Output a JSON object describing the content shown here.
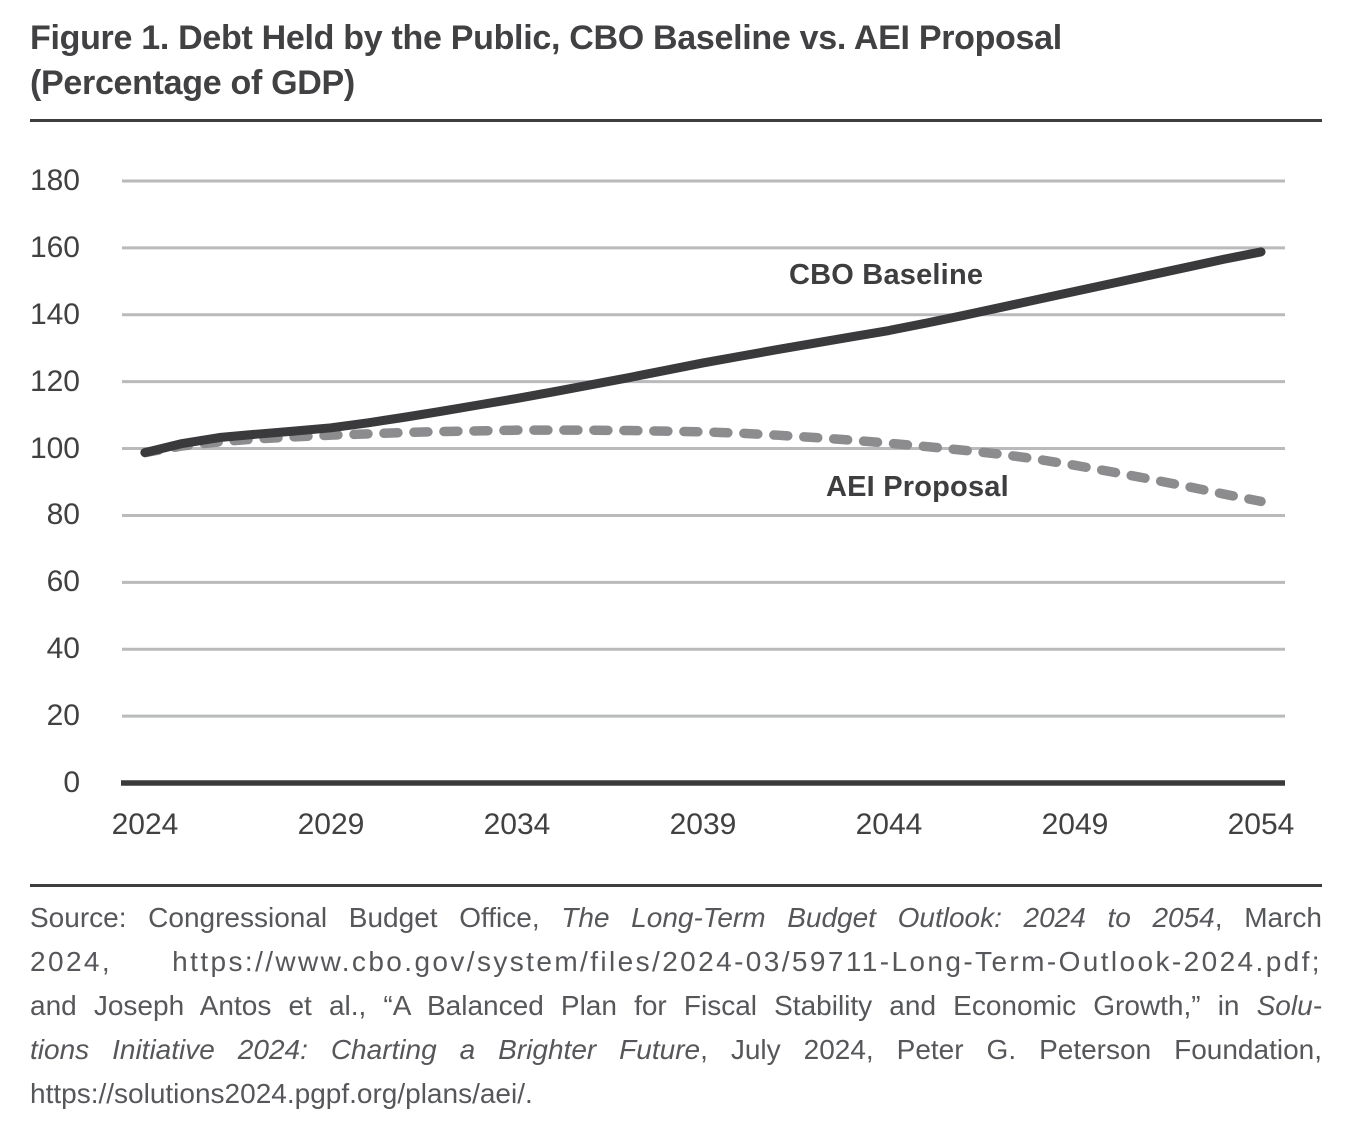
{
  "title": {
    "lines": [
      "Figure 1. Debt Held by the Public, CBO Baseline vs. AEI Proposal",
      "(Percentage of GDP)"
    ]
  },
  "chart_data": {
    "type": "line",
    "title": "Figure 1. Debt Held by the Public, CBO Baseline vs. AEI Proposal (Percentage of GDP)",
    "xlabel": "",
    "ylabel": "Percentage of GDP",
    "ylim": [
      0,
      180
    ],
    "y_ticks": [
      0,
      20,
      40,
      60,
      80,
      100,
      120,
      140,
      160,
      180
    ],
    "x_ticks": [
      2024,
      2029,
      2034,
      2039,
      2044,
      2049,
      2054
    ],
    "grid": "horizontal",
    "legend": "inline-labels",
    "x": [
      2024,
      2025,
      2026,
      2027,
      2028,
      2029,
      2030,
      2031,
      2032,
      2033,
      2034,
      2035,
      2036,
      2037,
      2038,
      2039,
      2040,
      2041,
      2042,
      2043,
      2044,
      2045,
      2046,
      2047,
      2048,
      2049,
      2050,
      2051,
      2052,
      2053,
      2054
    ],
    "series": [
      {
        "name": "CBO Baseline",
        "style": "solid",
        "color": "#3a3a3c",
        "values": [
          98.8,
          101.5,
          103.3,
          104.3,
          105.2,
          106.2,
          107.7,
          109.4,
          111.2,
          113.1,
          115.0,
          117.0,
          119.1,
          121.2,
          123.4,
          125.6,
          127.6,
          129.6,
          131.5,
          133.4,
          135.3,
          137.5,
          139.8,
          142.2,
          144.6,
          147.0,
          149.4,
          151.8,
          154.2,
          156.6,
          158.8
        ]
      },
      {
        "name": "AEI Proposal",
        "style": "dashed",
        "color": "#8c8c8e",
        "values": [
          98.8,
          100.8,
          102.0,
          102.9,
          103.5,
          104.0,
          104.4,
          104.8,
          105.1,
          105.3,
          105.5,
          105.5,
          105.5,
          105.4,
          105.2,
          105.0,
          104.6,
          104.0,
          103.3,
          102.5,
          101.6,
          100.6,
          99.5,
          98.3,
          96.8,
          95.0,
          93.0,
          90.9,
          88.7,
          86.4,
          84.2
        ]
      }
    ]
  },
  "source": {
    "lines": [
      [
        {
          "text": "Source: Congressional Budget Office, ",
          "italic": false
        },
        {
          "text": "The Long-Term Budget Outlook: 2024 to 2054",
          "italic": true
        },
        {
          "text": ", March",
          "italic": false
        }
      ],
      [
        {
          "text": "2024, https://www.cbo.gov/system/files/2024-03/59711-Long-Term-Outlook-2024.pdf;",
          "italic": false
        }
      ],
      [
        {
          "text": "and Joseph Antos et al., “A Balanced Plan for Fiscal Stability and Economic Growth,” in ",
          "italic": false
        },
        {
          "text": "Solu-",
          "italic": true
        }
      ],
      [
        {
          "text": "tions Initiative 2024: Charting a Brighter Future",
          "italic": true
        },
        {
          "text": ", July 2024, Peter G. Peterson Foundation,",
          "italic": false
        }
      ],
      [
        {
          "text": "https://solutions2024.pgpf.org/plans/aei/.",
          "italic": false
        }
      ]
    ]
  },
  "colors": {
    "title_text": "#414042",
    "axis_line": "#3a3a3c",
    "gridline": "#b9babb",
    "tick_text": "#414042",
    "series_label_text": "#3e3e40",
    "source_text": "#56575a",
    "divider": "#3d3e40"
  }
}
